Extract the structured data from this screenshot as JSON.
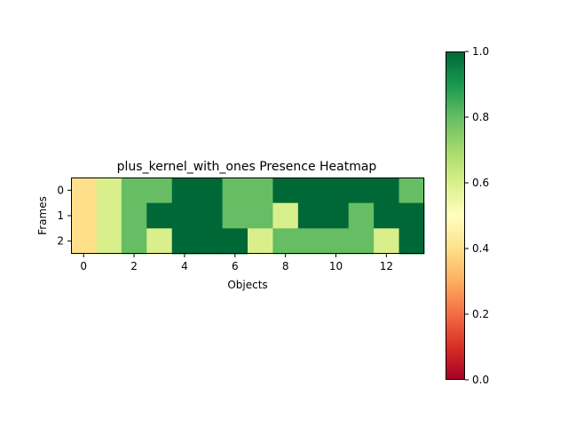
{
  "chart_data": {
    "type": "heatmap",
    "title": "plus_kernel_with_ones Presence Heatmap",
    "xlabel": "Objects",
    "ylabel": "Frames",
    "x_ticks": [
      "0",
      "2",
      "4",
      "6",
      "8",
      "10",
      "12"
    ],
    "y_ticks": [
      "0",
      "1",
      "2"
    ],
    "colormap": "RdYlGn",
    "vmin": 0.0,
    "vmax": 1.0,
    "colorbar_ticks": [
      "0.0",
      "0.2",
      "0.4",
      "0.6",
      "0.8",
      "1.0"
    ],
    "values": [
      [
        0.4,
        0.6,
        0.8,
        0.8,
        1.0,
        1.0,
        0.8,
        0.8,
        1.0,
        1.0,
        1.0,
        1.0,
        1.0,
        0.8
      ],
      [
        0.4,
        0.6,
        0.8,
        1.0,
        1.0,
        1.0,
        0.8,
        0.8,
        0.6,
        1.0,
        1.0,
        0.8,
        1.0,
        1.0
      ],
      [
        0.4,
        0.6,
        0.8,
        0.6,
        1.0,
        1.0,
        1.0,
        0.6,
        0.8,
        0.8,
        0.8,
        0.8,
        0.6,
        1.0
      ]
    ]
  }
}
